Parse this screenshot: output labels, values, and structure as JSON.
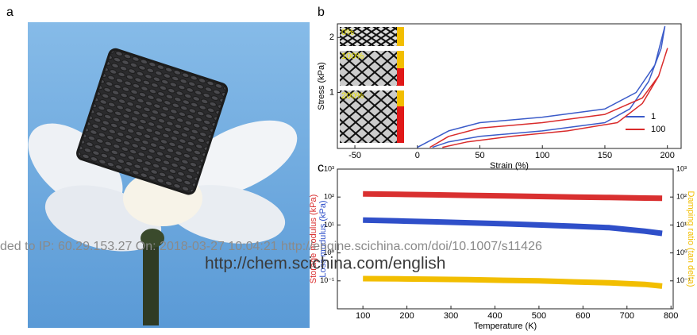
{
  "panel_labels": [
    "a",
    "b",
    "c"
  ],
  "watermark": {
    "download": "ded to IP: 60.29.153.27 On: 2018-03-27 10:04:21 http://engine.scichina.com/doi/10.1007/s11426",
    "site": "http://chem.scichina.com/english"
  },
  "chart_data": [
    {
      "type": "line",
      "xlabel": "Strain (%)",
      "ylabel": "Stress (kPa)",
      "inset_labels": [
        "0%",
        "100%",
        "200%"
      ],
      "xlim": [
        -64,
        211
      ],
      "ylim": [
        -0.02,
        2.25
      ],
      "xticks": [
        -50,
        0,
        50,
        100,
        150,
        200
      ],
      "yticks": [
        1,
        2
      ],
      "legend": "lower right",
      "line_width": 1.5,
      "series": [
        {
          "name": "1",
          "color": "#3b5bc9",
          "x": [
            0,
            25,
            50,
            100,
            150,
            175,
            190,
            198,
            195,
            185,
            170,
            150,
            100,
            50,
            25,
            12
          ],
          "values": [
            0,
            0.3,
            0.45,
            0.55,
            0.7,
            1.0,
            1.5,
            2.2,
            1.8,
            1.2,
            0.7,
            0.45,
            0.3,
            0.2,
            0.1,
            0
          ]
        },
        {
          "name": "100",
          "color": "#d92b2b",
          "x": [
            10,
            25,
            50,
            100,
            150,
            180,
            193,
            200,
            193,
            180,
            160,
            120,
            75,
            40,
            20
          ],
          "values": [
            0,
            0.2,
            0.35,
            0.45,
            0.6,
            0.9,
            1.3,
            1.8,
            1.3,
            0.8,
            0.45,
            0.3,
            0.2,
            0.1,
            0
          ]
        }
      ]
    },
    {
      "type": "line",
      "xlabel": "Temperature (K)",
      "log_y": true,
      "xlim": [
        42,
        805
      ],
      "ylim": [
        0.01,
        1000
      ],
      "y2lim": [
        0.01,
        1000
      ],
      "xticks": [
        100,
        200,
        300,
        400,
        500,
        600,
        700,
        800
      ],
      "yticks": [
        {
          "value": 1000,
          "label": "10³"
        },
        {
          "value": 100,
          "label": "10²"
        },
        {
          "value": 10,
          "label": "10¹"
        },
        {
          "value": 1,
          "label": "10⁰"
        },
        {
          "value": 0.1,
          "label": "10⁻¹"
        }
      ],
      "y2ticks": [
        {
          "value": 1000,
          "label": "10³"
        },
        {
          "value": 100,
          "label": "10²"
        },
        {
          "value": 10,
          "label": "10¹"
        },
        {
          "value": 1,
          "label": "10⁰"
        },
        {
          "value": 0.1,
          "label": "10⁻¹"
        }
      ],
      "line_width": 7,
      "x": [
        100,
        180,
        260,
        340,
        420,
        500,
        580,
        660,
        740,
        780
      ],
      "series": [
        {
          "name": "Storage modulus (kPa)",
          "color": "#d93030",
          "values": [
            130,
            125,
            120,
            115,
            110,
            105,
            100,
            96,
            92,
            90
          ]
        },
        {
          "name": "Loss modulus (kPa)",
          "color": "#2f4fc9",
          "values": [
            15,
            14,
            13,
            12,
            11,
            10,
            9,
            8,
            6,
            5
          ]
        },
        {
          "name": "Damping ratio (tan delta)",
          "color": "#f2be00",
          "axis": "y2",
          "values": [
            0.12,
            0.118,
            0.115,
            0.11,
            0.105,
            0.1,
            0.092,
            0.085,
            0.075,
            0.065
          ]
        }
      ]
    }
  ]
}
